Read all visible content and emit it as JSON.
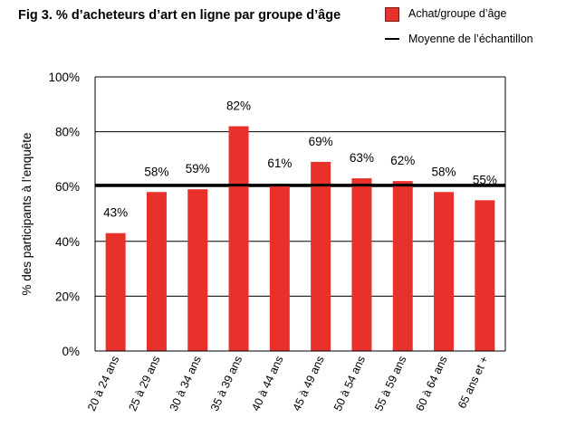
{
  "title": "Fig 3. % d’acheteurs d’art en ligne par groupe d’âge",
  "legend": {
    "bar_label": "Achat/groupe d’âge",
    "line_label": "Moyenne de l’échantillon"
  },
  "colors": {
    "bar": "#e8312a",
    "average_line": "#000000",
    "grid": "#000000"
  },
  "chart_data": {
    "type": "bar",
    "categories": [
      "20 à 24 ans",
      "25 à 29 ans",
      "30 à 34 ans",
      "35 à 39 ans",
      "40 à 44 ans",
      "45 à 49 ans",
      "50 à 54 ans",
      "55 à 59 ans",
      "60 à 64 ans",
      "65 ans et +"
    ],
    "series": [
      {
        "name": "Achat/groupe d’âge",
        "values": [
          43,
          58,
          59,
          82,
          61,
          69,
          63,
          62,
          58,
          55
        ]
      }
    ],
    "data_labels": [
      "43%",
      "58%",
      "59%",
      "82%",
      "61%",
      "69%",
      "63%",
      "62%",
      "58%",
      "55%"
    ],
    "average": {
      "name": "Moyenne de l’échantillon",
      "value": 60.5
    },
    "ylabel": "% des participants à l’enquête",
    "xlabel": "",
    "ylim": [
      0,
      100
    ],
    "yticks": [
      0,
      20,
      40,
      60,
      80,
      100
    ],
    "ytick_labels": [
      "0%",
      "20%",
      "40%",
      "60%",
      "80%",
      "100%"
    ],
    "grid": true,
    "legend_position": "top-right"
  }
}
